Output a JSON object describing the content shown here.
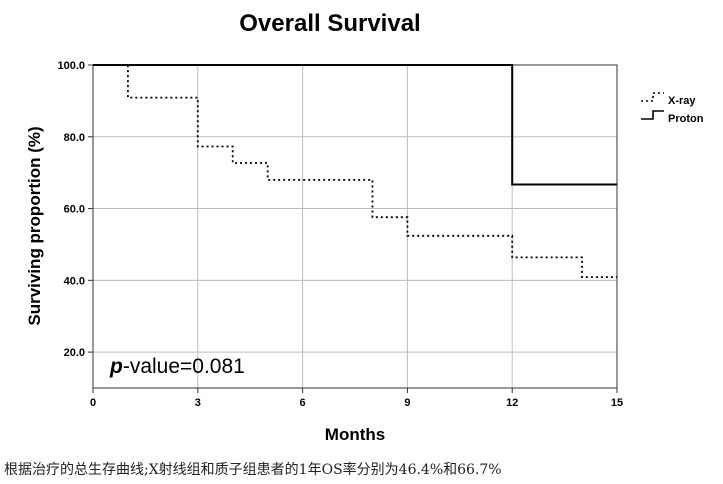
{
  "chart_data": {
    "type": "line",
    "title": "Overall Survival",
    "xlabel": "Months",
    "ylabel": "Surviving proportion (%)",
    "xlim": [
      0,
      15
    ],
    "ylim": [
      10,
      100
    ],
    "x_ticks": [
      0,
      3,
      6,
      9,
      12,
      15
    ],
    "x_tick_labels": [
      "0",
      "3",
      "6",
      "9",
      "12",
      "15"
    ],
    "y_ticks": [
      20,
      40,
      60,
      80,
      100
    ],
    "y_tick_labels": [
      "20.0",
      "40.0",
      "60.0",
      "80.0",
      "100.0"
    ],
    "grid": true,
    "legend_position": "top-right",
    "annotation": {
      "prefix": "p",
      "text": "-value=0.081"
    },
    "series": [
      {
        "name": "X-ray",
        "style": "dotted",
        "color": "#000000",
        "steps": [
          [
            0,
            100
          ],
          [
            1,
            90.9
          ],
          [
            3,
            77.3
          ],
          [
            4,
            72.7
          ],
          [
            5,
            68.0
          ],
          [
            8,
            57.6
          ],
          [
            9,
            52.4
          ],
          [
            12,
            46.4
          ],
          [
            14,
            40.9
          ],
          [
            15,
            40.9
          ]
        ]
      },
      {
        "name": "Proton",
        "style": "solid",
        "color": "#000000",
        "steps": [
          [
            0,
            100
          ],
          [
            12,
            66.7
          ],
          [
            15,
            66.7
          ]
        ]
      }
    ]
  },
  "caption": "根据治疗的总生存曲线;X射线组和质子组患者的1年OS率分别为46.4%和66.7%"
}
